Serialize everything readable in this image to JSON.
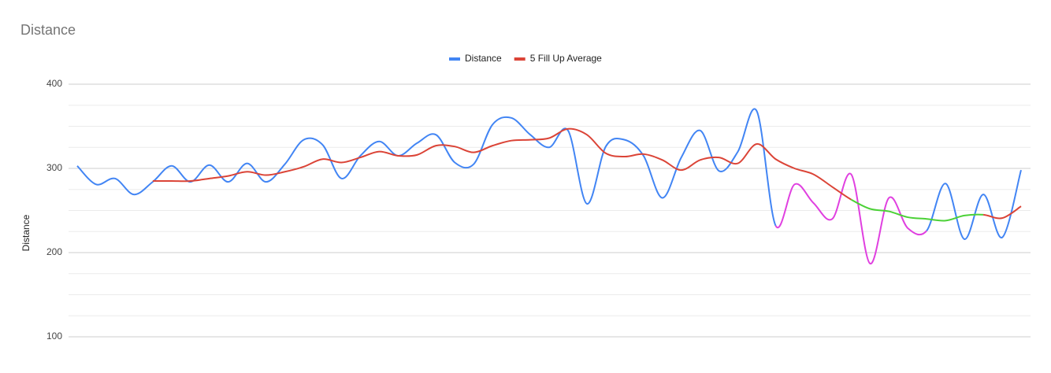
{
  "chart_data": {
    "type": "line",
    "title": "Distance",
    "y_label": "Distance",
    "ylim": [
      100,
      400
    ],
    "yticks": [
      100,
      200,
      300,
      400
    ],
    "minor_yticks": [
      125,
      150,
      175,
      225,
      250,
      275,
      325,
      350,
      375
    ],
    "grid": true,
    "legend": "top",
    "series": [
      {
        "name": "Distance",
        "color": "#4285f4",
        "highlight": {
          "from": 37,
          "to": 45,
          "color": "#e040e0"
        },
        "values": [
          303,
          281,
          288,
          269,
          284,
          303,
          284,
          304,
          284,
          306,
          284,
          305,
          334,
          328,
          288,
          315,
          332,
          315,
          330,
          340,
          307,
          305,
          352,
          360,
          340,
          325,
          345,
          258,
          326,
          334,
          315,
          265,
          313,
          345,
          297,
          320,
          368,
          232,
          281,
          259,
          240,
          293,
          187,
          265,
          229,
          226,
          282,
          216,
          269,
          218,
          298
        ]
      },
      {
        "name": "5 Fill Up Average",
        "color": "#db4437",
        "highlight": {
          "from": 41,
          "to": 48,
          "color": "#4cd137"
        },
        "values": [
          null,
          null,
          null,
          null,
          285,
          285,
          285,
          288,
          291,
          296,
          292,
          296,
          302,
          311,
          307,
          313,
          320,
          315,
          316,
          327,
          326,
          319,
          327,
          333,
          334,
          336,
          347,
          340,
          318,
          314,
          317,
          310,
          298,
          310,
          313,
          306,
          329,
          311,
          300,
          293,
          278,
          263,
          252,
          249,
          242,
          240,
          238,
          244,
          245,
          241,
          255
        ]
      }
    ]
  }
}
